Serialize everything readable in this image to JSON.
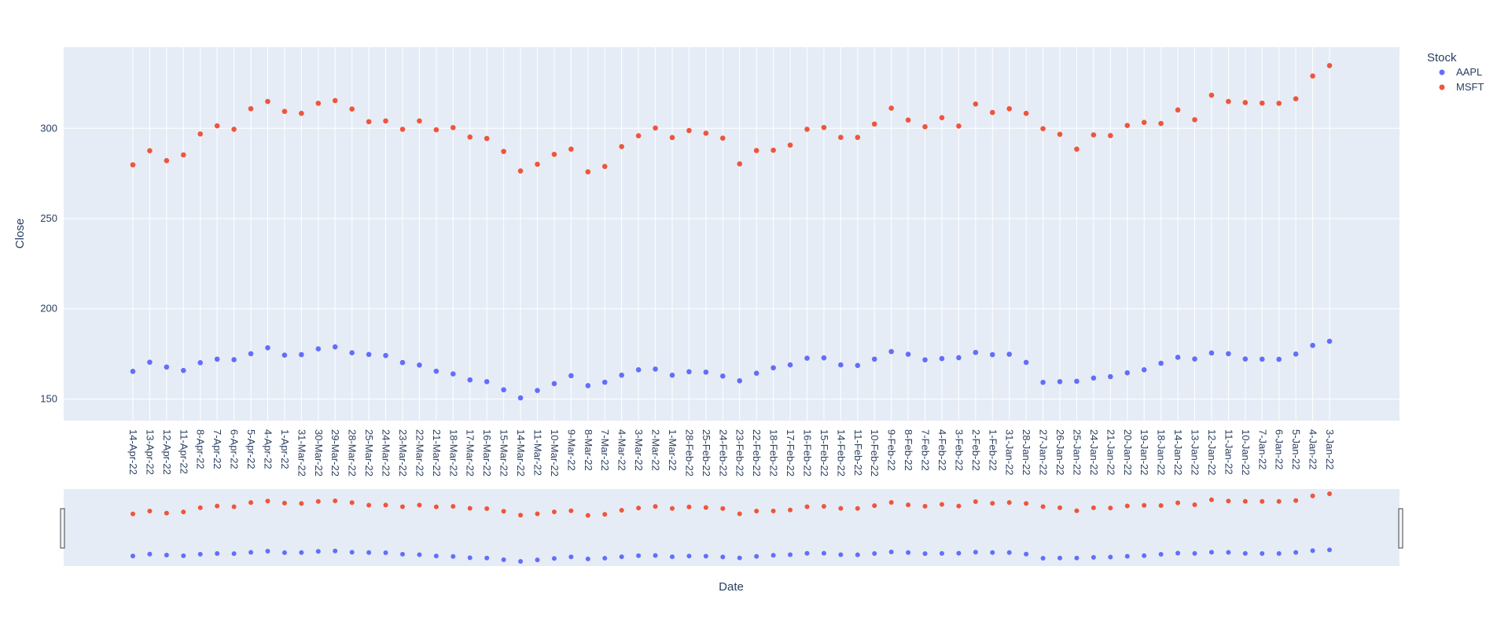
{
  "chart_data": {
    "type": "scatter",
    "xlabel": "Date",
    "ylabel": "Close",
    "x_axis_order": "descending-date",
    "y_ticks": [
      150,
      200,
      250,
      300
    ],
    "ylim": [
      138,
      345
    ],
    "grid": true,
    "rangeslider": true,
    "legend": {
      "title": "Stock",
      "placement": "top-right"
    },
    "categories": [
      "14-Apr-22",
      "13-Apr-22",
      "12-Apr-22",
      "11-Apr-22",
      "8-Apr-22",
      "7-Apr-22",
      "6-Apr-22",
      "5-Apr-22",
      "4-Apr-22",
      "1-Apr-22",
      "31-Mar-22",
      "30-Mar-22",
      "29-Mar-22",
      "28-Mar-22",
      "25-Mar-22",
      "24-Mar-22",
      "23-Mar-22",
      "22-Mar-22",
      "21-Mar-22",
      "18-Mar-22",
      "17-Mar-22",
      "16-Mar-22",
      "15-Mar-22",
      "14-Mar-22",
      "11-Mar-22",
      "10-Mar-22",
      "9-Mar-22",
      "8-Mar-22",
      "7-Mar-22",
      "4-Mar-22",
      "3-Mar-22",
      "2-Mar-22",
      "1-Mar-22",
      "28-Feb-22",
      "25-Feb-22",
      "24-Feb-22",
      "23-Feb-22",
      "22-Feb-22",
      "18-Feb-22",
      "17-Feb-22",
      "16-Feb-22",
      "15-Feb-22",
      "14-Feb-22",
      "11-Feb-22",
      "10-Feb-22",
      "9-Feb-22",
      "8-Feb-22",
      "7-Feb-22",
      "4-Feb-22",
      "3-Feb-22",
      "2-Feb-22",
      "1-Feb-22",
      "31-Jan-22",
      "28-Jan-22",
      "27-Jan-22",
      "26-Jan-22",
      "25-Jan-22",
      "24-Jan-22",
      "21-Jan-22",
      "20-Jan-22",
      "19-Jan-22",
      "18-Jan-22",
      "14-Jan-22",
      "13-Jan-22",
      "12-Jan-22",
      "11-Jan-22",
      "10-Jan-22",
      "7-Jan-22",
      "6-Jan-22",
      "5-Jan-22",
      "4-Jan-22",
      "3-Jan-22"
    ],
    "series": [
      {
        "name": "AAPL",
        "color": "#636efa",
        "values": [
          165.3,
          170.4,
          167.7,
          165.8,
          170.1,
          172.1,
          171.8,
          175.1,
          178.4,
          174.3,
          174.6,
          177.8,
          178.9,
          175.6,
          174.7,
          174.1,
          170.2,
          168.8,
          165.4,
          163.9,
          160.6,
          159.6,
          155.1,
          150.6,
          154.7,
          158.5,
          162.9,
          157.4,
          159.3,
          163.2,
          166.2,
          166.6,
          163.2,
          165.1,
          164.9,
          162.7,
          160.1,
          164.3,
          167.3,
          168.9,
          172.6,
          172.8,
          168.9,
          168.6,
          172.1,
          176.3,
          174.8,
          171.7,
          172.4,
          172.9,
          175.8,
          174.6,
          174.8,
          170.3,
          159.2,
          159.6,
          159.8,
          161.6,
          162.4,
          164.5,
          166.2,
          169.8,
          173.1,
          172.2,
          175.5,
          175.1,
          172.2,
          172.1,
          172.0,
          174.9,
          179.7,
          182.0
        ]
      },
      {
        "name": "MSFT",
        "color": "#ef553b",
        "values": [
          279.8,
          287.6,
          282.1,
          285.3,
          296.9,
          301.4,
          299.5,
          310.9,
          314.9,
          309.4,
          308.3,
          313.9,
          315.4,
          310.7,
          303.7,
          304.1,
          299.5,
          304.1,
          299.2,
          300.4,
          295.2,
          294.4,
          287.2,
          276.4,
          280.1,
          285.6,
          288.5,
          275.9,
          278.9,
          289.9,
          295.9,
          300.2,
          294.9,
          298.8,
          297.3,
          294.6,
          280.3,
          287.7,
          287.9,
          290.7,
          299.5,
          300.5,
          295.0,
          295.0,
          302.4,
          311.2,
          304.6,
          300.9,
          305.9,
          301.3,
          313.5,
          308.8,
          310.9,
          308.3,
          299.8,
          296.7,
          288.5,
          296.4,
          296.0,
          301.6,
          303.3,
          302.7,
          310.2,
          304.8,
          318.4,
          314.9,
          314.3,
          314.0,
          313.9,
          316.4,
          329.0,
          334.8
        ]
      }
    ]
  }
}
